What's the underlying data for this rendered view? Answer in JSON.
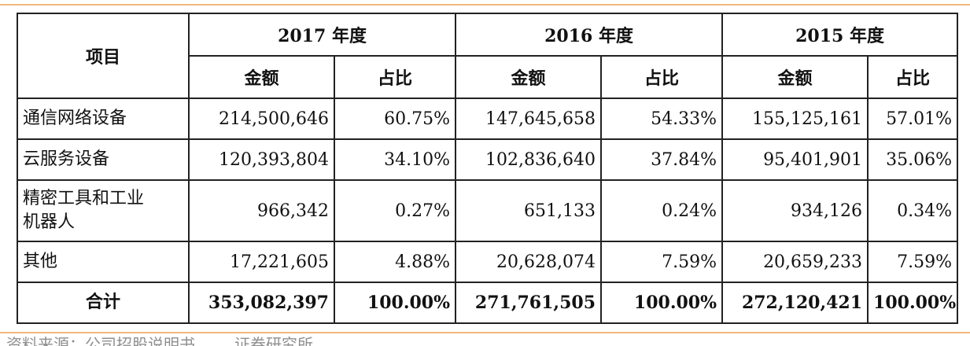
{
  "table": {
    "item_header": "项目",
    "years": [
      "2017 年度",
      "2016 年度",
      "2015 年度"
    ],
    "sub_headers": {
      "amount": "金额",
      "ratio": "占比"
    },
    "rows": [
      {
        "label": "通信网络设备",
        "y2017_amount": "214,500,646",
        "y2017_ratio": "60.75%",
        "y2016_amount": "147,645,658",
        "y2016_ratio": "54.33%",
        "y2015_amount": "155,125,161",
        "y2015_ratio": "57.01%"
      },
      {
        "label": "云服务设备",
        "y2017_amount": "120,393,804",
        "y2017_ratio": "34.10%",
        "y2016_amount": "102,836,640",
        "y2016_ratio": "37.84%",
        "y2015_amount": "95,401,901",
        "y2015_ratio": "35.06%"
      },
      {
        "label_line1": "精密工具和工业",
        "label_line2": "机器人",
        "y2017_amount": "966,342",
        "y2017_ratio": "0.27%",
        "y2016_amount": "651,133",
        "y2016_ratio": "0.24%",
        "y2015_amount": "934,126",
        "y2015_ratio": "0.34%"
      },
      {
        "label": "其他",
        "y2017_amount": "17,221,605",
        "y2017_ratio": "4.88%",
        "y2016_amount": "20,628,074",
        "y2016_ratio": "7.59%",
        "y2015_amount": "20,659,233",
        "y2015_ratio": "7.59%"
      }
    ],
    "total": {
      "label": "合计",
      "y2017_amount": "353,082,397",
      "y2017_ratio": "100.00%",
      "y2016_amount": "271,761,505",
      "y2016_ratio": "100.00%",
      "y2015_amount": "272,120,421",
      "y2015_ratio": "100.00%"
    }
  },
  "footnote": "资料来源：公司招股说明书，___证券研究所"
}
